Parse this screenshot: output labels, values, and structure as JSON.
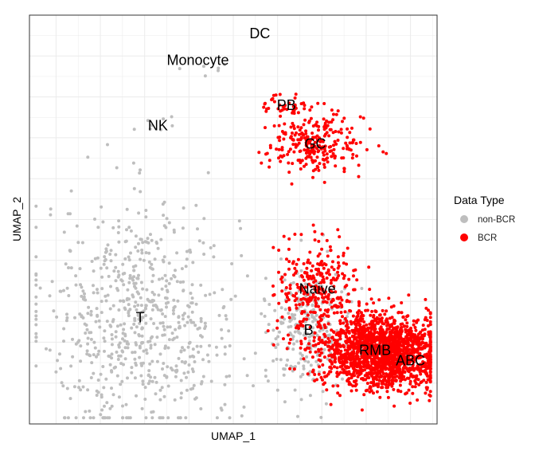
{
  "chart_data": {
    "type": "scatter",
    "xlabel": "UMAP_1",
    "ylabel": "UMAP_2",
    "xlim": [
      -0.6,
      8.6
    ],
    "ylim": [
      -1.0,
      9.0
    ],
    "x_ticks": [
      0,
      1,
      2,
      3,
      4,
      5,
      6,
      7,
      8
    ],
    "y_ticks": [
      0,
      1,
      2,
      3,
      4,
      5,
      6,
      7,
      8
    ],
    "grid": true,
    "legend": {
      "title": "Data Type",
      "position": "right",
      "entries": [
        {
          "label": "non-BCR",
          "color": "#bebebe"
        },
        {
          "label": "BCR",
          "color": "#ff0000"
        }
      ]
    },
    "series": [
      {
        "name": "non-BCR",
        "color": "#bebebe"
      },
      {
        "name": "BCR",
        "color": "#ff0000"
      }
    ],
    "clusters": [
      {
        "label": "DC",
        "x": 4.6,
        "y": 8.55,
        "n": 0,
        "sx": 0,
        "sy": 0,
        "type": "non-BCR"
      },
      {
        "label": "Monocyte",
        "x": 3.2,
        "y": 7.9,
        "n": 6,
        "sx": 0.5,
        "sy": 0.2,
        "type": "non-BCR"
      },
      {
        "label": "NK",
        "x": 2.3,
        "y": 6.3,
        "n": 8,
        "sx": 0.3,
        "sy": 0.15,
        "type": "non-BCR"
      },
      {
        "label": "T",
        "x": 1.9,
        "y": 1.6,
        "n": 700,
        "sx": 1.1,
        "sy": 1.4,
        "type": "non-BCR"
      },
      {
        "label": "PB",
        "x": 5.2,
        "y": 6.8,
        "n": 40,
        "sx": 0.25,
        "sy": 0.15,
        "type": "BCR"
      },
      {
        "label": "GC",
        "x": 5.85,
        "y": 5.85,
        "n": 260,
        "sx": 0.55,
        "sy": 0.35,
        "type": "BCR"
      },
      {
        "label": "Naive",
        "x": 5.9,
        "y": 2.3,
        "n": 300,
        "sx": 0.45,
        "sy": 0.6,
        "type": "BCR"
      },
      {
        "label": "B",
        "x": 5.7,
        "y": 1.3,
        "n": 250,
        "sx": 0.5,
        "sy": 0.7,
        "type": "non-BCR"
      },
      {
        "label": "RMB",
        "x": 7.2,
        "y": 0.8,
        "n": 1500,
        "sx": 0.6,
        "sy": 0.45,
        "type": "BCR"
      },
      {
        "label": "ABC",
        "x": 8.0,
        "y": 0.55,
        "n": 300,
        "sx": 0.45,
        "sy": 0.4,
        "type": "BCR"
      }
    ]
  }
}
